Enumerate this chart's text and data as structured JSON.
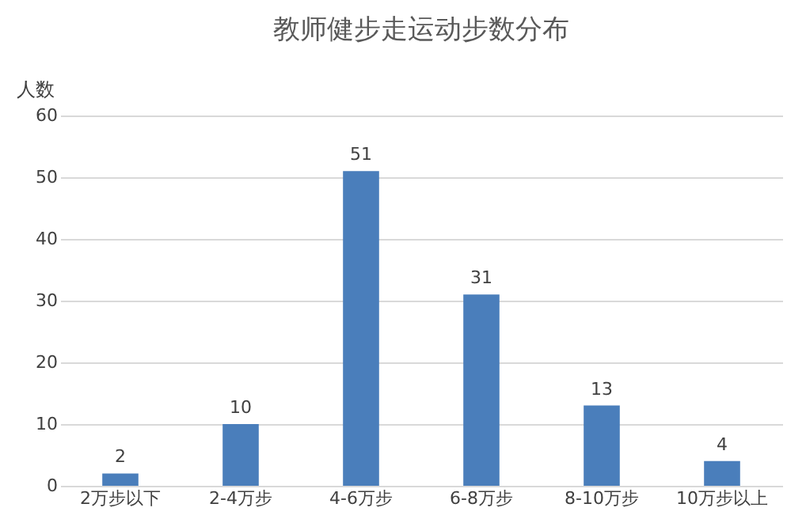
{
  "chart_data": {
    "type": "bar",
    "title": "教师健步走运动步数分布",
    "ylabel": "人数",
    "categories": [
      "2万步以下",
      "2-4万步",
      "4-6万步",
      "6-8万步",
      "8-10万步",
      "10万步以上"
    ],
    "values": [
      2,
      10,
      51,
      31,
      13,
      4
    ],
    "color": "#4a7ebb",
    "ylim": [
      0,
      60
    ],
    "yticks": [
      0,
      10,
      20,
      30,
      40,
      50,
      60
    ],
    "grid": "y",
    "data_labels": true
  }
}
